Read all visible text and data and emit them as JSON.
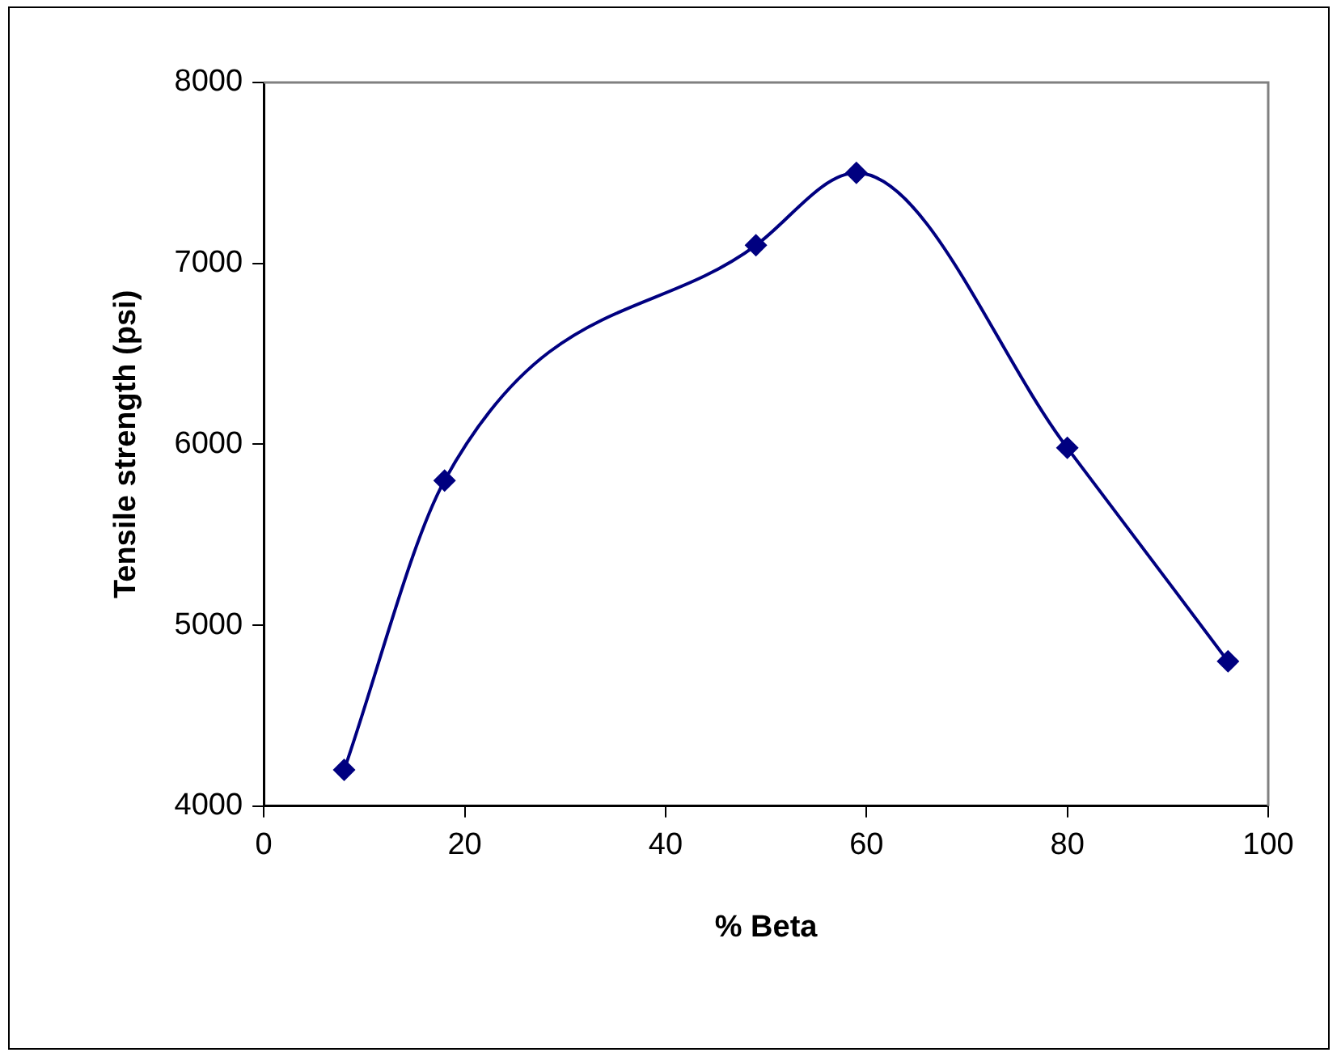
{
  "chart_data": {
    "type": "line",
    "xlabel": "% Beta",
    "ylabel": "Tensile strength (psi)",
    "x": [
      8,
      18,
      49,
      59,
      80,
      96
    ],
    "series": [
      {
        "color": "#000080",
        "values": [
          4200,
          5800,
          7100,
          7500,
          5980,
          4800
        ]
      }
    ],
    "xlim": [
      0,
      100
    ],
    "xticks": [
      0,
      20,
      40,
      60,
      80,
      100
    ],
    "ylim": [
      4000,
      8000
    ],
    "yticks": [
      4000,
      5000,
      6000,
      7000,
      8000
    ],
    "grid": false,
    "legend": false,
    "marker": "diamond",
    "line_style": "solid"
  }
}
